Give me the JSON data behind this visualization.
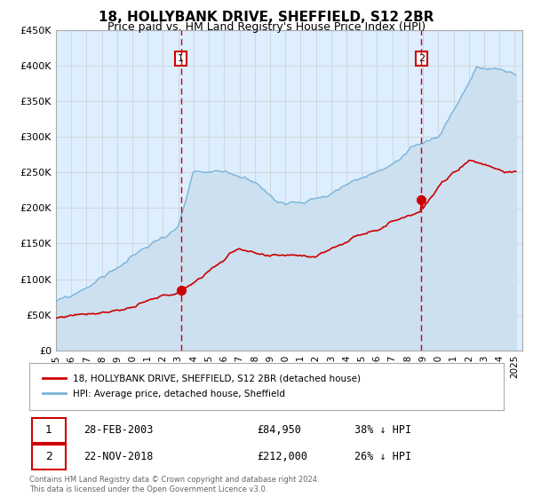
{
  "title_line1": "18, HOLLYBANK DRIVE, SHEFFIELD, S12 2BR",
  "title_line2": "Price paid vs. HM Land Registry's House Price Index (HPI)",
  "ylim": [
    0,
    450000
  ],
  "yticks": [
    0,
    50000,
    100000,
    150000,
    200000,
    250000,
    300000,
    350000,
    400000,
    450000
  ],
  "ytick_labels": [
    "£0",
    "£50K",
    "£100K",
    "£150K",
    "£200K",
    "£250K",
    "£300K",
    "£350K",
    "£400K",
    "£450K"
  ],
  "sale1_x": 2003.167,
  "sale1_price": 84950,
  "sale1_label": "28-FEB-2003",
  "sale1_pct": "38%",
  "sale2_x": 2018.9,
  "sale2_price": 212000,
  "sale2_label": "22-NOV-2018",
  "sale2_pct": "26%",
  "hpi_color": "#7ab3d8",
  "hpi_fill_color": "#cce0f0",
  "price_color": "#cc0000",
  "vline_color": "#cc0000",
  "grid_color": "#cccccc",
  "plot_bg_color": "#ddeeff",
  "legend_label_price": "18, HOLLYBANK DRIVE, SHEFFIELD, S12 2BR (detached house)",
  "legend_label_hpi": "HPI: Average price, detached house, Sheffield",
  "footer_text": "Contains HM Land Registry data © Crown copyright and database right 2024.\nThis data is licensed under the Open Government Licence v3.0.",
  "title_fontsize": 11,
  "subtitle_fontsize": 9
}
